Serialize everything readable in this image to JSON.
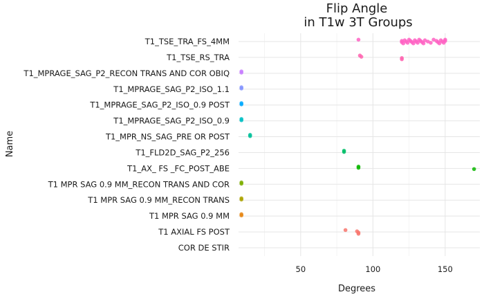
{
  "chart_data": {
    "type": "scatter",
    "title": "Flip Angle",
    "subtitle": "in T1w 3T Groups",
    "xlabel": "Degrees",
    "ylabel": "Name",
    "xlim": [
      7,
      174
    ],
    "x_ticks": [
      50,
      100,
      150
    ],
    "grid": true,
    "legend": "none",
    "categories": [
      "T1_TSE_TRA_FS_4MM",
      "T1_TSE_RS_TRA",
      "T1_MPRAGE_SAG_P2_RECON TRANS AND COR OBIQ",
      "T1_MPRAGE_SAG_P2_ISO_1.1",
      "T1_MPRAGE_SAG_P2_ISO_0.9 POST",
      "T1_MPRAGE_SAG_P2_ISO_0.9",
      "T1_MPR_NS_SAG_PRE OR POST",
      "T1_FLD2D_SAG_P2_256",
      "T1_AX_ FS _FC_POST_ABE",
      "T1 MPR SAG 0.9 MM_RECON TRANS AND COR",
      "T1 MPR SAG 0.9 MM_RECON TRANS",
      "T1 MPR SAG 0.9 MM",
      "T1 AXIAL FS POST",
      "COR DE STIR"
    ],
    "series": [
      {
        "category": "T1_TSE_TRA_FS_4MM",
        "color": "#FF61C3",
        "values": [
          90,
          120,
          120,
          121,
          122,
          123,
          124,
          125,
          126,
          127,
          128,
          129,
          130,
          131,
          132,
          133,
          134,
          135,
          136,
          138,
          140,
          142,
          144,
          145,
          146,
          147,
          148,
          149,
          150,
          150
        ]
      },
      {
        "category": "T1_TSE_RS_TRA",
        "color": "#FF64B0",
        "values": [
          91,
          92,
          120,
          120
        ]
      },
      {
        "category": "T1_MPRAGE_SAG_P2_RECON TRANS AND COR OBIQ",
        "color": "#C77CFF",
        "values": [
          9,
          9
        ]
      },
      {
        "category": "T1_MPRAGE_SAG_P2_ISO_1.1",
        "color": "#8494FF",
        "values": [
          9,
          9
        ]
      },
      {
        "category": "T1_MPRAGE_SAG_P2_ISO_0.9 POST",
        "color": "#00A9FF",
        "values": [
          9,
          9
        ]
      },
      {
        "category": "T1_MPRAGE_SAG_P2_ISO_0.9",
        "color": "#00BFC4",
        "values": [
          9,
          9
        ]
      },
      {
        "category": "T1_MPR_NS_SAG_PRE OR POST",
        "color": "#00C19A",
        "values": [
          15,
          15
        ]
      },
      {
        "category": "T1_FLD2D_SAG_P2_256",
        "color": "#00BE67",
        "values": [
          80,
          80
        ]
      },
      {
        "category": "T1_AX_ FS _FC_POST_ABE",
        "color": "#0CB702",
        "values": [
          90,
          90,
          170
        ]
      },
      {
        "category": "T1 MPR SAG 0.9 MM_RECON TRANS AND COR",
        "color": "#7CAE00",
        "values": [
          9,
          9
        ]
      },
      {
        "category": "T1 MPR SAG 0.9 MM_RECON TRANS",
        "color": "#ABA300",
        "values": [
          9,
          9
        ]
      },
      {
        "category": "T1 MPR SAG 0.9 MM",
        "color": "#E68613",
        "values": [
          9,
          9
        ]
      },
      {
        "category": "T1 AXIAL FS POST",
        "color": "#F8766D",
        "values": [
          81,
          89,
          90,
          90
        ]
      },
      {
        "category": "COR DE STIR",
        "color": "#F8766D",
        "values": []
      }
    ]
  }
}
